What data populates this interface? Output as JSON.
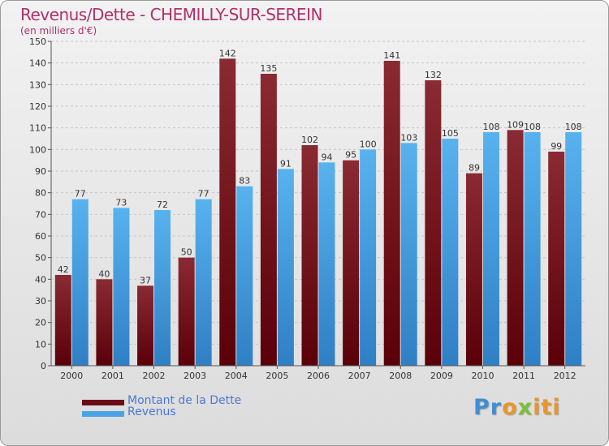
{
  "header": {
    "title": "Revenus/Dette - CHEMILLY-SUR-SEREIN",
    "subtitle": "(en milliers d'€)"
  },
  "chart_data": {
    "type": "bar",
    "categories": [
      "2000",
      "2001",
      "2002",
      "2003",
      "2004",
      "2005",
      "2006",
      "2007",
      "2008",
      "2009",
      "2010",
      "2011",
      "2012"
    ],
    "series": [
      {
        "name": "Montant de la Dette",
        "color": "#6b0d16",
        "values": [
          42,
          40,
          37,
          50,
          142,
          135,
          102,
          95,
          141,
          132,
          89,
          109,
          99
        ]
      },
      {
        "name": "Revenus",
        "color": "#4aa3e6",
        "values": [
          77,
          73,
          72,
          77,
          83,
          91,
          94,
          100,
          103,
          105,
          108,
          108,
          108
        ]
      }
    ],
    "ylim": [
      0,
      150
    ],
    "yticks": [
      0,
      10,
      20,
      30,
      40,
      50,
      60,
      70,
      80,
      90,
      100,
      110,
      120,
      130,
      140,
      150
    ],
    "grid": true,
    "legend": "bottom-left"
  },
  "legend": {
    "debt_label": "Montant de la Dette",
    "revenue_label": "Revenus"
  },
  "logo": {
    "text": "Proxiti",
    "part1": "Pr",
    "part2": "o",
    "part3": "x",
    "part4": "iti"
  }
}
